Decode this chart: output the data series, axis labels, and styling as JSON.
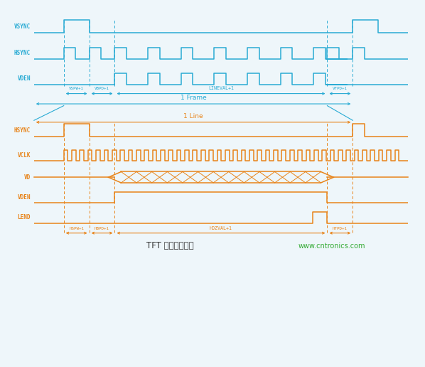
{
  "cyan_color": "#29ABD4",
  "orange_color": "#E8841A",
  "bg_color": "#EEF6FA",
  "title": "TFT 屏工作时序图",
  "watermark": "www.cntronics.com",
  "title_color": "#333333",
  "watermark_color": "#33AA33",
  "top_timing_labels": [
    "VSPW+1",
    "VBPD+1",
    "LINEVAL+1",
    "VFPD+1"
  ],
  "bottom_timing_labels": [
    "HSPW+1",
    "HBPD+1",
    "HOZVAL+1",
    "HFPD+1"
  ],
  "frame_label": "1 Frame",
  "line_label": "1 Line",
  "ts": 8,
  "tv1": 15,
  "tv2": 21,
  "tv3": 27,
  "tv4": 77,
  "tv5": 83,
  "tv6": 89,
  "te": 96
}
